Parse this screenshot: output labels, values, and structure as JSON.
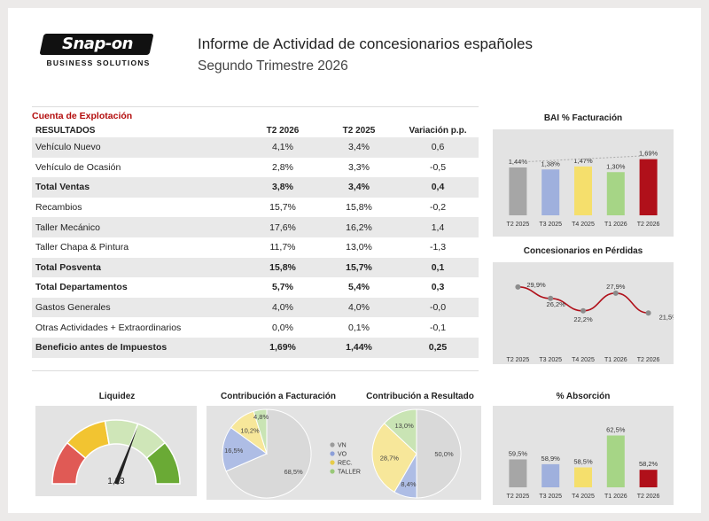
{
  "header": {
    "logo_text": "Snap-on",
    "logo_sub": "BUSINESS SOLUTIONS",
    "title": "Informe de Actividad de concesionarios españoles",
    "subtitle": "Segundo Trimestre 2026"
  },
  "table": {
    "caption": "Cuenta de Explotación",
    "headers": [
      "RESULTADOS",
      "T2 2026",
      "T2 2025",
      "Variación p.p."
    ],
    "rows": [
      {
        "label": "Vehículo Nuevo",
        "t2_2026": "4,1%",
        "t2_2025": "3,4%",
        "var": "0,6"
      },
      {
        "label": "Vehículo de Ocasión",
        "t2_2026": "2,8%",
        "t2_2025": "3,3%",
        "var": "-0,5"
      },
      {
        "label": "Total Ventas",
        "t2_2026": "3,8%",
        "t2_2025": "3,4%",
        "var": "0,4"
      },
      {
        "label": "Recambios",
        "t2_2026": "15,7%",
        "t2_2025": "15,8%",
        "var": "-0,2"
      },
      {
        "label": "Taller Mecánico",
        "t2_2026": "17,6%",
        "t2_2025": "16,2%",
        "var": "1,4"
      },
      {
        "label": "Taller Chapa & Pintura",
        "t2_2026": "11,7%",
        "t2_2025": "13,0%",
        "var": "-1,3"
      },
      {
        "label": "Total Posventa",
        "t2_2026": "15,8%",
        "t2_2025": "15,7%",
        "var": "0,1"
      },
      {
        "label": "Total Departamentos",
        "t2_2026": "5,7%",
        "t2_2025": "5,4%",
        "var": "0,3"
      },
      {
        "label": "Gastos Generales",
        "t2_2026": "4,0%",
        "t2_2025": "4,0%",
        "var": "-0,0"
      },
      {
        "label": "Otras Actividades + Extraordinarios",
        "t2_2026": "0,0%",
        "t2_2025": "0,1%",
        "var": "-0,1"
      },
      {
        "label": "Beneficio antes de Impuestos",
        "t2_2026": "1,69%",
        "t2_2025": "1,44%",
        "var": "0,25"
      }
    ]
  },
  "colors": {
    "grey": "#a6a6a6",
    "blue": "#9fb0dd",
    "yellow": "#f5df6c",
    "green": "#a6d586",
    "red": "#b0101a",
    "vn": "#d9d9d9",
    "vo": "#aebde5",
    "rec": "#f7e79a",
    "taller": "#c9e4b4"
  },
  "chart_data": [
    {
      "type": "bar",
      "title": "BAI % Facturación",
      "categories": [
        "T2 2025",
        "T3 2025",
        "T4 2025",
        "T1 2026",
        "T2 2026"
      ],
      "values": [
        1.44,
        1.38,
        1.47,
        1.3,
        1.69
      ],
      "value_labels": [
        "1,44%",
        "1,38%",
        "1,47%",
        "1,30%",
        "1,69%"
      ],
      "colors": [
        "#a6a6a6",
        "#9fb0dd",
        "#f5df6c",
        "#a6d586",
        "#b0101a"
      ],
      "trendline": "dotted",
      "ylim": [
        0,
        2.0
      ]
    },
    {
      "type": "line",
      "title": "Concesionarios en Pérdidas",
      "categories": [
        "T2 2025",
        "T3 2025",
        "T4 2025",
        "T1 2026",
        "T2 2026"
      ],
      "values": [
        29.9,
        26.2,
        22.2,
        27.9,
        21.5
      ],
      "value_labels": [
        "29,9%",
        "26,2%",
        "22,2%",
        "27,9%",
        "21,5%"
      ],
      "line_color": "#b0101a",
      "ylim": [
        15,
        35
      ]
    },
    {
      "type": "gauge",
      "title": "Liquidez",
      "value": 1.23,
      "value_label": "1,23",
      "range": [
        0,
        2
      ],
      "band_colors": [
        "#e05a55",
        "#f2c431",
        "#cfe6b8",
        "#6aaa35"
      ]
    },
    {
      "type": "pie",
      "title": "Contribución a Facturación",
      "labels": [
        "VN",
        "VO",
        "REC.",
        "TALLER"
      ],
      "values": [
        68.5,
        16.5,
        10.2,
        4.8
      ],
      "value_labels": [
        "68,5%",
        "16,5%",
        "10,2%",
        "4,8%"
      ]
    },
    {
      "type": "pie",
      "title": "Contribución a Resultado",
      "labels": [
        "VN",
        "VO",
        "REC.",
        "TALLER"
      ],
      "values": [
        50.0,
        8.4,
        28.7,
        13.0
      ],
      "value_labels": [
        "50,0%",
        "8,4%",
        "28,7%",
        "13,0%"
      ]
    },
    {
      "type": "bar",
      "title": "% Absorción",
      "categories": [
        "T2 2025",
        "T3 2025",
        "T4 2025",
        "T1 2026",
        "T2 2026"
      ],
      "values": [
        59.5,
        58.9,
        58.5,
        62.5,
        58.2
      ],
      "value_labels": [
        "59,5%",
        "58,9%",
        "58,5%",
        "62,5%",
        "58,2%"
      ],
      "colors": [
        "#a6a6a6",
        "#9fb0dd",
        "#f5df6c",
        "#a6d586",
        "#b0101a"
      ],
      "ylim": [
        56,
        64
      ]
    }
  ]
}
